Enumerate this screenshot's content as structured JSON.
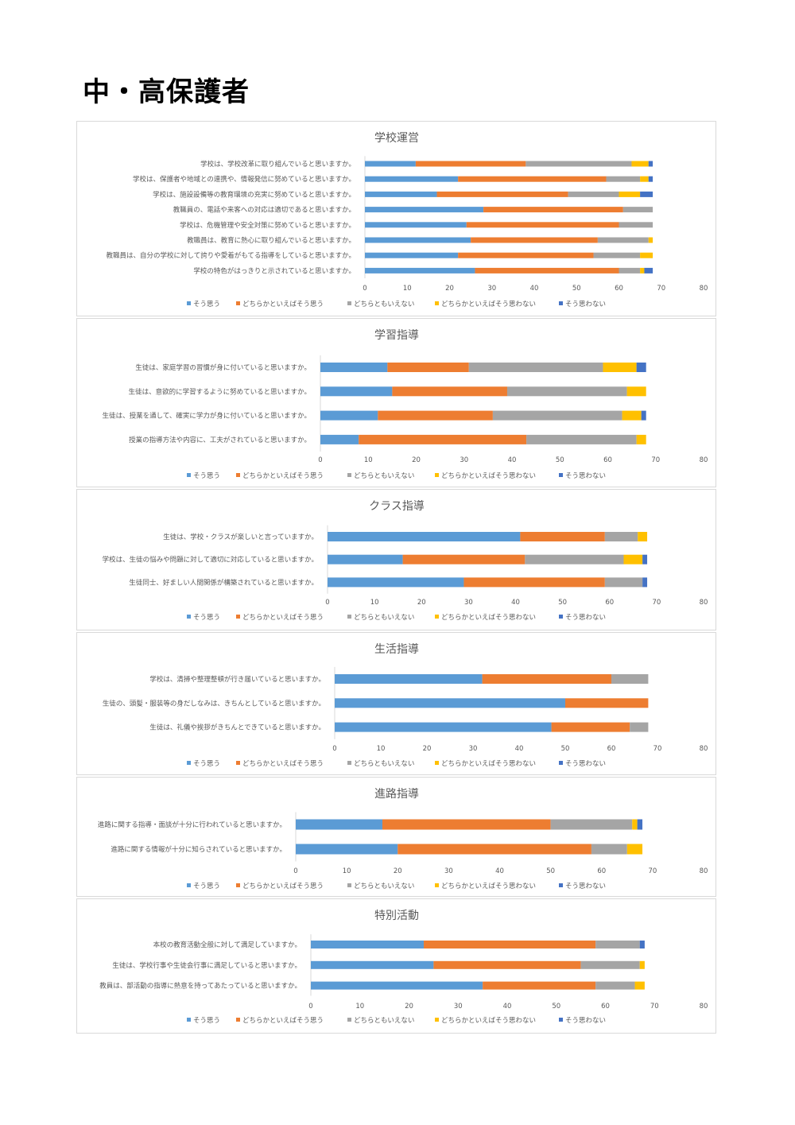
{
  "page": {
    "title": "中・高保護者"
  },
  "chart_data": [
    {
      "type": "bar",
      "orientation": "horizontal",
      "stacked": true,
      "title": "学校運営",
      "categories": [
        "学校は、学校改革に取り組んでいると思いますか。",
        "学校は、保護者や地域との連携や、情報発信に努めていると思いますか。",
        "学校は、施設設備等の教育環境の充実に努めていると思いますか。",
        "教職員の、電話や来客への対応は適切であると思いますか。",
        "学校は、危機管理や安全対策に努めていると思いますか。",
        "教職員は、教育に熱心に取り組んでいると思いますか。",
        "教職員は、自分の学校に対して誇りや愛着がもてる指導をしていると思いますか。",
        "学校の特色がはっきりと示されていると思いますか。"
      ],
      "series": [
        {
          "name": "そう思う",
          "color": "#5b9bd5",
          "values": [
            12,
            22,
            17,
            28,
            24,
            25,
            22,
            26
          ]
        },
        {
          "name": "どちらかといえばそう思う",
          "color": "#ed7d31",
          "values": [
            26,
            35,
            31,
            33,
            36,
            30,
            32,
            34
          ]
        },
        {
          "name": "どちらともいえない",
          "color": "#a5a5a5",
          "values": [
            25,
            8,
            12,
            7,
            8,
            12,
            11,
            5
          ]
        },
        {
          "name": "どちらかといえばそう思わない",
          "color": "#ffc000",
          "values": [
            4,
            2,
            5,
            0,
            0,
            1,
            3,
            1
          ]
        },
        {
          "name": "そう思わない",
          "color": "#4472c4",
          "values": [
            1,
            1,
            3,
            0,
            0,
            0,
            0,
            2
          ]
        }
      ],
      "xlim": [
        0,
        80
      ],
      "xticks": [
        0,
        10,
        20,
        30,
        40,
        50,
        60,
        70,
        80
      ],
      "legend": "bottom"
    },
    {
      "type": "bar",
      "orientation": "horizontal",
      "stacked": true,
      "title": "学習指導",
      "categories": [
        "生徒は、家庭学習の習慣が身に付いていると思いますか。",
        "生徒は、意欲的に学習するように努めていると思いますか。",
        "生徒は、授業を通して、確実に学力が身に付いていると思いますか。",
        "授業の指導方法や内容に、工夫がされていると思いますか。"
      ],
      "series": [
        {
          "name": "そう思う",
          "color": "#5b9bd5",
          "values": [
            14,
            15,
            12,
            8
          ]
        },
        {
          "name": "どちらかといえばそう思う",
          "color": "#ed7d31",
          "values": [
            17,
            24,
            24,
            35
          ]
        },
        {
          "name": "どちらともいえない",
          "color": "#a5a5a5",
          "values": [
            28,
            25,
            27,
            23
          ]
        },
        {
          "name": "どちらかといえばそう思わない",
          "color": "#ffc000",
          "values": [
            7,
            4,
            4,
            2
          ]
        },
        {
          "name": "そう思わない",
          "color": "#4472c4",
          "values": [
            2,
            0,
            1,
            0
          ]
        }
      ],
      "xlim": [
        0,
        80
      ],
      "xticks": [
        0,
        10,
        20,
        30,
        40,
        50,
        60,
        70,
        80
      ],
      "legend": "bottom"
    },
    {
      "type": "bar",
      "orientation": "horizontal",
      "stacked": true,
      "title": "クラス指導",
      "categories": [
        "生徒は、学校・クラスが楽しいと言っていますか。",
        "学校は、生徒の悩みや問題に対して適切に対応していると思いますか。",
        "生徒同士、好ましい人間関係が構築されていると思いますか。"
      ],
      "series": [
        {
          "name": "そう思う",
          "color": "#5b9bd5",
          "values": [
            41,
            16,
            29
          ]
        },
        {
          "name": "どちらかといえばそう思う",
          "color": "#ed7d31",
          "values": [
            18,
            26,
            30
          ]
        },
        {
          "name": "どちらともいえない",
          "color": "#a5a5a5",
          "values": [
            7,
            21,
            8
          ]
        },
        {
          "name": "どちらかといえばそう思わない",
          "color": "#ffc000",
          "values": [
            2,
            4,
            0
          ]
        },
        {
          "name": "そう思わない",
          "color": "#4472c4",
          "values": [
            0,
            1,
            1
          ]
        }
      ],
      "xlim": [
        0,
        80
      ],
      "xticks": [
        0,
        10,
        20,
        30,
        40,
        50,
        60,
        70,
        80
      ],
      "legend": "bottom"
    },
    {
      "type": "bar",
      "orientation": "horizontal",
      "stacked": true,
      "title": "生活指導",
      "categories": [
        "学校は、清掃や整理整頓が行き届いていると思いますか。",
        "生徒の、頭髪・服装等の身だしなみは、きちんとしていると思いますか。",
        "生徒は、礼儀や挨拶がきちんとできていると思いますか。"
      ],
      "series": [
        {
          "name": "そう思う",
          "color": "#5b9bd5",
          "values": [
            32,
            50,
            47
          ]
        },
        {
          "name": "どちらかといえばそう思う",
          "color": "#ed7d31",
          "values": [
            28,
            18,
            17
          ]
        },
        {
          "name": "どちらともいえない",
          "color": "#a5a5a5",
          "values": [
            8,
            0,
            4
          ]
        },
        {
          "name": "どちらかといえばそう思わない",
          "color": "#ffc000",
          "values": [
            0,
            0,
            0
          ]
        },
        {
          "name": "そう思わない",
          "color": "#4472c4",
          "values": [
            0,
            0,
            0
          ]
        }
      ],
      "xlim": [
        0,
        80
      ],
      "xticks": [
        0,
        10,
        20,
        30,
        40,
        50,
        60,
        70,
        80
      ],
      "legend": "bottom"
    },
    {
      "type": "bar",
      "orientation": "horizontal",
      "stacked": true,
      "title": "進路指導",
      "categories": [
        "進路に関する指導・面談が十分に行われていると思いますか。",
        "進路に関する情報が十分に知らされていると思いますか。"
      ],
      "series": [
        {
          "name": "そう思う",
          "color": "#5b9bd5",
          "values": [
            17,
            20
          ]
        },
        {
          "name": "どちらかといえばそう思う",
          "color": "#ed7d31",
          "values": [
            33,
            38
          ]
        },
        {
          "name": "どちらともいえない",
          "color": "#a5a5a5",
          "values": [
            16,
            7
          ]
        },
        {
          "name": "どちらかといえばそう思わない",
          "color": "#ffc000",
          "values": [
            1,
            3
          ]
        },
        {
          "name": "そう思わない",
          "color": "#4472c4",
          "values": [
            1,
            0
          ]
        }
      ],
      "xlim": [
        0,
        80
      ],
      "xticks": [
        0,
        10,
        20,
        30,
        40,
        50,
        60,
        70,
        80
      ],
      "legend": "bottom"
    },
    {
      "type": "bar",
      "orientation": "horizontal",
      "stacked": true,
      "title": "特別活動",
      "categories": [
        "本校の教育活動全般に対して満足していますか。",
        "生徒は、学校行事や生徒会行事に満足していると思いますか。",
        "教員は、部活動の指導に熱意を持ってあたっていると思いますか。"
      ],
      "series": [
        {
          "name": "そう思う",
          "color": "#5b9bd5",
          "values": [
            23,
            25,
            35
          ]
        },
        {
          "name": "どちらかといえばそう思う",
          "color": "#ed7d31",
          "values": [
            35,
            30,
            23
          ]
        },
        {
          "name": "どちらともいえない",
          "color": "#a5a5a5",
          "values": [
            9,
            12,
            8
          ]
        },
        {
          "name": "どちらかといえばそう思わない",
          "color": "#ffc000",
          "values": [
            0,
            1,
            2
          ]
        },
        {
          "name": "そう思わない",
          "color": "#4472c4",
          "values": [
            1,
            0,
            0
          ]
        }
      ],
      "xlim": [
        0,
        80
      ],
      "xticks": [
        0,
        10,
        20,
        30,
        40,
        50,
        60,
        70,
        80
      ],
      "legend": "bottom"
    }
  ]
}
